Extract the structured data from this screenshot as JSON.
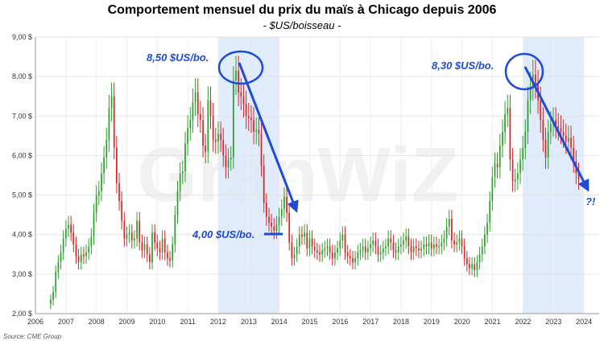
{
  "title": "Comportement mensuel du prix du maïs à Chicago depuis 2006",
  "subtitle": "- $US/boisseau -",
  "source": "Source: CME Group",
  "watermark": "GranWiZ",
  "colors": {
    "up": "#2ca02c",
    "down": "#d62728",
    "highlight": "#dbe7fb",
    "annotation": "#1f4bd8"
  },
  "annotations": [
    {
      "text": "8,50 $US/bo."
    },
    {
      "text": "4,00 $US/bo."
    },
    {
      "text": "8,30 $US/bo."
    },
    {
      "text": "?!"
    }
  ],
  "chart_data": {
    "type": "candlestick",
    "title": "Comportement mensuel du prix du maïs à Chicago depuis 2006",
    "subtitle": "- $US/boisseau -",
    "y_tick_labels": [
      "2,00 $",
      "3,00 $",
      "4,00 $",
      "5,00 $",
      "6,00 $",
      "7,00 $",
      "8,00 $",
      "9,00 $"
    ],
    "x_tick_labels": [
      "2006",
      "2007",
      "2008",
      "2009",
      "2010",
      "2011",
      "2012",
      "2013",
      "2014",
      "2015",
      "2016",
      "2017",
      "2018",
      "2019",
      "2020",
      "2021",
      "2022",
      "2023",
      "2024"
    ],
    "ylim": [
      2.0,
      9.0
    ],
    "xlim": [
      2006.0,
      2024.5
    ],
    "grid": true,
    "highlight_periods": [
      [
        2012.0,
        2014.0
      ],
      [
        2022.0,
        2024.0
      ]
    ],
    "close_series": {
      "start": 2006.5,
      "step": 0.0833,
      "values": [
        2.35,
        2.55,
        3.05,
        3.3,
        3.55,
        3.9,
        4.15,
        4.25,
        4.05,
        3.75,
        3.45,
        3.3,
        3.5,
        3.45,
        3.55,
        3.7,
        3.95,
        4.55,
        5.0,
        5.1,
        5.55,
        5.95,
        6.4,
        7.2,
        7.5,
        6.2,
        5.3,
        4.85,
        4.35,
        3.9,
        4.0,
        4.05,
        3.85,
        3.9,
        4.35,
        3.8,
        3.6,
        3.75,
        3.5,
        3.3,
        4.05,
        3.8,
        3.65,
        3.55,
        3.9,
        3.55,
        3.4,
        3.35,
        3.75,
        4.5,
        5.1,
        5.55,
        5.6,
        6.3,
        6.7,
        6.9,
        7.35,
        7.6,
        7.05,
        6.9,
        6.25,
        6.1,
        7.4,
        7.0,
        6.4,
        6.35,
        6.55,
        6.4,
        6.0,
        5.7,
        5.9,
        5.95,
        7.9,
        8.15,
        7.6,
        7.5,
        7.3,
        7.0,
        6.95,
        6.9,
        6.6,
        6.65,
        6.55,
        5.75,
        4.8,
        4.45,
        4.3,
        4.2,
        4.1,
        4.25,
        4.45,
        4.65,
        4.95,
        4.55,
        3.8,
        3.4,
        3.5,
        3.7,
        4.0,
        3.95,
        4.05,
        3.65,
        3.9,
        3.7,
        3.6,
        3.55,
        3.5,
        3.6,
        3.65,
        3.7,
        3.55,
        3.4,
        3.55,
        3.65,
        3.85,
        4.0,
        3.55,
        3.45,
        3.4,
        3.3,
        3.4,
        3.55,
        3.6,
        3.7,
        3.55,
        3.65,
        3.75,
        3.85,
        3.7,
        3.5,
        3.55,
        3.65,
        3.7,
        3.9,
        3.8,
        3.6,
        3.55,
        3.7,
        3.75,
        3.85,
        3.95,
        3.7,
        3.55,
        3.7,
        3.65,
        3.6,
        3.65,
        3.75,
        3.7,
        3.8,
        3.65,
        3.75,
        3.7,
        3.7,
        3.8,
        3.9,
        4.2,
        4.4,
        3.85,
        3.75,
        3.8,
        3.9,
        3.7,
        3.4,
        3.25,
        3.15,
        3.25,
        3.1,
        3.3,
        3.5,
        3.7,
        4.0,
        4.3,
        4.85,
        5.45,
        5.8,
        5.7,
        6.25,
        6.6,
        7.05,
        7.2,
        5.9,
        5.35,
        5.4,
        5.55,
        5.9,
        6.2,
        6.6,
        7.4,
        7.75,
        8.05,
        7.8,
        7.4,
        6.9,
        6.4,
        5.95,
        6.6,
        6.8,
        6.9,
        6.75,
        6.7,
        6.6,
        6.5,
        6.35,
        6.45,
        6.2,
        5.85,
        5.55,
        5.4
      ]
    }
  }
}
